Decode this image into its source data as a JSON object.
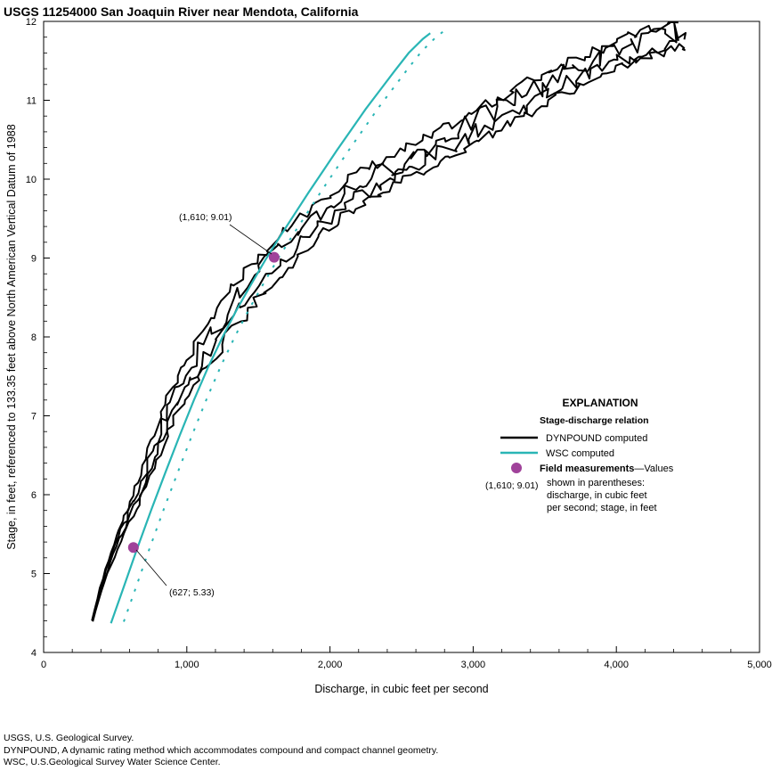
{
  "colors": {
    "dynpound": "#000000",
    "wsc": "#29b5b5",
    "field_measurement": "#a0429a",
    "axis": "#000000"
  },
  "chart_data": {
    "type": "line",
    "title": "USGS 11254000 San Joaquin River near Mendota, California",
    "xlabel": "Discharge, in cubic feet per second",
    "ylabel": "Stage, in feet, referenced to 133.35 feet above North American Vertical Datum of 1988",
    "xlim": [
      0,
      5000
    ],
    "ylim": [
      4,
      12
    ],
    "x_ticks": [
      "0",
      "1,000",
      "2,000",
      "3,000",
      "4,000",
      "5,000"
    ],
    "y_ticks": [
      "4",
      "5",
      "6",
      "7",
      "8",
      "9",
      "10",
      "11",
      "12"
    ],
    "grid": false,
    "legend_position": "right",
    "series": [
      {
        "name": "DYNPOUND computed",
        "style": "solid-noisy",
        "x": [
          340,
          400,
          460,
          520,
          580,
          640,
          700,
          760,
          820,
          880,
          950,
          1020,
          1100,
          1200,
          1300,
          1400,
          1500,
          1600,
          1700,
          1800,
          1900,
          2000,
          2100,
          2200,
          2300,
          2400,
          2500,
          2600,
          2700,
          2800,
          2900,
          3000,
          3100,
          3200,
          3300,
          3400,
          3500,
          3600,
          3700,
          3800,
          3900,
          4000,
          4100,
          4200,
          4300,
          4400,
          4450
        ],
        "y": [
          4.4,
          4.8,
          5.15,
          5.45,
          5.7,
          5.95,
          6.2,
          6.5,
          6.8,
          7.1,
          7.35,
          7.55,
          7.8,
          8.1,
          8.35,
          8.55,
          8.75,
          8.95,
          9.15,
          9.35,
          9.5,
          9.65,
          9.78,
          9.9,
          10.0,
          10.08,
          10.18,
          10.28,
          10.38,
          10.48,
          10.58,
          10.68,
          10.78,
          10.88,
          10.98,
          11.08,
          11.18,
          11.28,
          11.36,
          11.44,
          11.52,
          11.6,
          11.66,
          11.72,
          11.78,
          11.83,
          11.85
        ]
      },
      {
        "name": "WSC computed",
        "style": "solid",
        "x": [
          470,
          550,
          650,
          750,
          850,
          950,
          1050,
          1150,
          1250,
          1350,
          1450,
          1550,
          1650,
          1750,
          1850,
          1950,
          2050,
          2150,
          2250,
          2350,
          2450,
          2550,
          2650,
          2700
        ],
        "y": [
          4.37,
          4.78,
          5.3,
          5.8,
          6.28,
          6.75,
          7.2,
          7.62,
          8.0,
          8.35,
          8.67,
          8.98,
          9.27,
          9.55,
          9.83,
          10.1,
          10.37,
          10.63,
          10.89,
          11.13,
          11.37,
          11.6,
          11.78,
          11.85
        ]
      }
    ],
    "points": [
      {
        "name": "Field measurements",
        "x": 1610,
        "y": 9.01,
        "label": "(1,610; 9.01)"
      },
      {
        "name": "Field measurements",
        "x": 627,
        "y": 5.33,
        "label": "(627; 5.33)"
      }
    ],
    "legend": {
      "heading": "EXPLANATION",
      "subheading": "Stage-discharge relation",
      "line1": "DYNPOUND computed",
      "line2": "WSC computed",
      "marker_label_bold": "Field measurements",
      "marker_text_1": "—Values",
      "marker_text_2": "shown in parentheses:",
      "marker_text_3": "discharge, in cubic feet",
      "marker_text_4": "per second; stage, in feet",
      "marker_example": "(1,610; 9.01)"
    }
  },
  "footnotes": [
    "USGS, U.S. Geological Survey.",
    "DYNPOUND, A dynamic rating method which accommodates compound and compact channel geometry.",
    "WSC, U.S.Geological Survey Water Science Center."
  ]
}
